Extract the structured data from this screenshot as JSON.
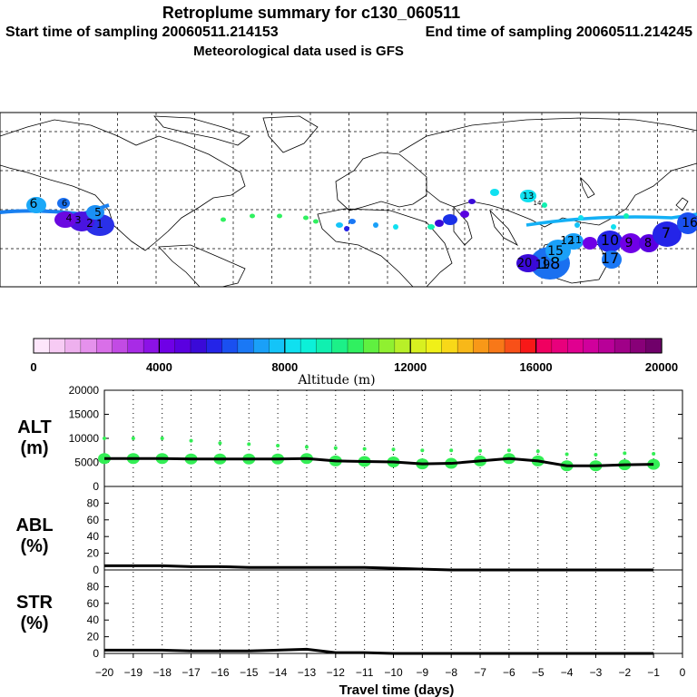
{
  "title": "Retroplume summary for c130_060511",
  "subtitle_start": "Start time of sampling 20060511.214153",
  "subtitle_end": "End time of sampling 20060511.214245",
  "met_line": "Meteorological data used is GFS",
  "colorbar": {
    "label": "Altitude (m)",
    "tick_labels": [
      "0",
      "4000",
      "8000",
      "12000",
      "16000",
      "20000"
    ],
    "colors": [
      "#fde6fb",
      "#f7cbf4",
      "#eeb0ee",
      "#e591ec",
      "#d96fe8",
      "#c24be4",
      "#a82be6",
      "#8c12e6",
      "#6f00e6",
      "#5a00e0",
      "#3a0ad8",
      "#2424e8",
      "#1a50f0",
      "#1a78f5",
      "#1aa0f8",
      "#14c4f8",
      "#10e0f0",
      "#0cf0d8",
      "#10f0b0",
      "#1cf088",
      "#30f060",
      "#60f040",
      "#90f030",
      "#b8f028",
      "#d8f020",
      "#f0f018",
      "#f8d818",
      "#f8b818",
      "#f89818",
      "#f87818",
      "#f85018",
      "#f81818",
      "#f00060",
      "#e8007c",
      "#e00090",
      "#d0009c",
      "#b80098",
      "#a00088",
      "#880078",
      "#70006a"
    ]
  },
  "panels": {
    "alt": {
      "label_line1": "ALT",
      "label_line2": "(m)",
      "ticks": [
        "0",
        "5000",
        "10000",
        "15000",
        "20000"
      ]
    },
    "abl": {
      "label_line1": "ABL",
      "label_line2": "(%)",
      "ticks": [
        "0",
        "20",
        "40",
        "60",
        "80"
      ]
    },
    "str": {
      "label_line1": "STR",
      "label_line2": "(%)",
      "ticks": [
        "0",
        "20",
        "40",
        "60",
        "80"
      ]
    }
  },
  "x_axis": {
    "label": "Travel time (days)",
    "tick_labels": [
      "−20",
      "−19",
      "−18",
      "−17",
      "−16",
      "−15",
      "−14",
      "−13",
      "−12",
      "−11",
      "−10",
      "−9",
      "−8",
      "−7",
      "−6",
      "−5",
      "−4",
      "−3",
      "−2",
      "−1",
      "0"
    ]
  },
  "map_labels": [
    "6",
    "6",
    "5",
    "4",
    "3",
    "2",
    "1",
    "13",
    "14",
    "15",
    "12",
    "11",
    "10",
    "9",
    "8",
    "7",
    "20",
    "18",
    "19",
    "17",
    "16"
  ],
  "chart_data": {
    "type": "line",
    "x": [
      -20,
      -19,
      -18,
      -17,
      -16,
      -15,
      -14,
      -13,
      -12,
      -11,
      -10,
      -9,
      -8,
      -7,
      -6,
      -5,
      -4,
      -3,
      -2,
      -1
    ],
    "xlim": [
      -20,
      0
    ],
    "series": [
      {
        "name": "ALT (m)",
        "ylim": [
          0,
          20000
        ],
        "values": [
          5800,
          5800,
          5800,
          5700,
          5700,
          5700,
          5700,
          5800,
          5300,
          5200,
          5100,
          4700,
          4800,
          5300,
          5800,
          5300,
          4300,
          4300,
          4500,
          4600
        ]
      },
      {
        "name": "ABL (%)",
        "ylim": [
          0,
          100
        ],
        "values": [
          5,
          5,
          5,
          4,
          4,
          3,
          3,
          3,
          3,
          3,
          2,
          1,
          0,
          0,
          0,
          0,
          0,
          0,
          0,
          0
        ]
      },
      {
        "name": "STR (%)",
        "ylim": [
          0,
          100
        ],
        "values": [
          4,
          4,
          4,
          3,
          3,
          3,
          4,
          5,
          1,
          1,
          0,
          0,
          0,
          0,
          0,
          0,
          0,
          0,
          0,
          0
        ]
      }
    ],
    "alt_spread_upper": [
      10000,
      10000,
      10000,
      9500,
      9000,
      8800,
      8500,
      8200,
      8000,
      7800,
      7700,
      7500,
      7500,
      7400,
      7500,
      7300,
      6700,
      6600,
      6900,
      6800
    ],
    "xlabel": "Travel time (days)"
  }
}
